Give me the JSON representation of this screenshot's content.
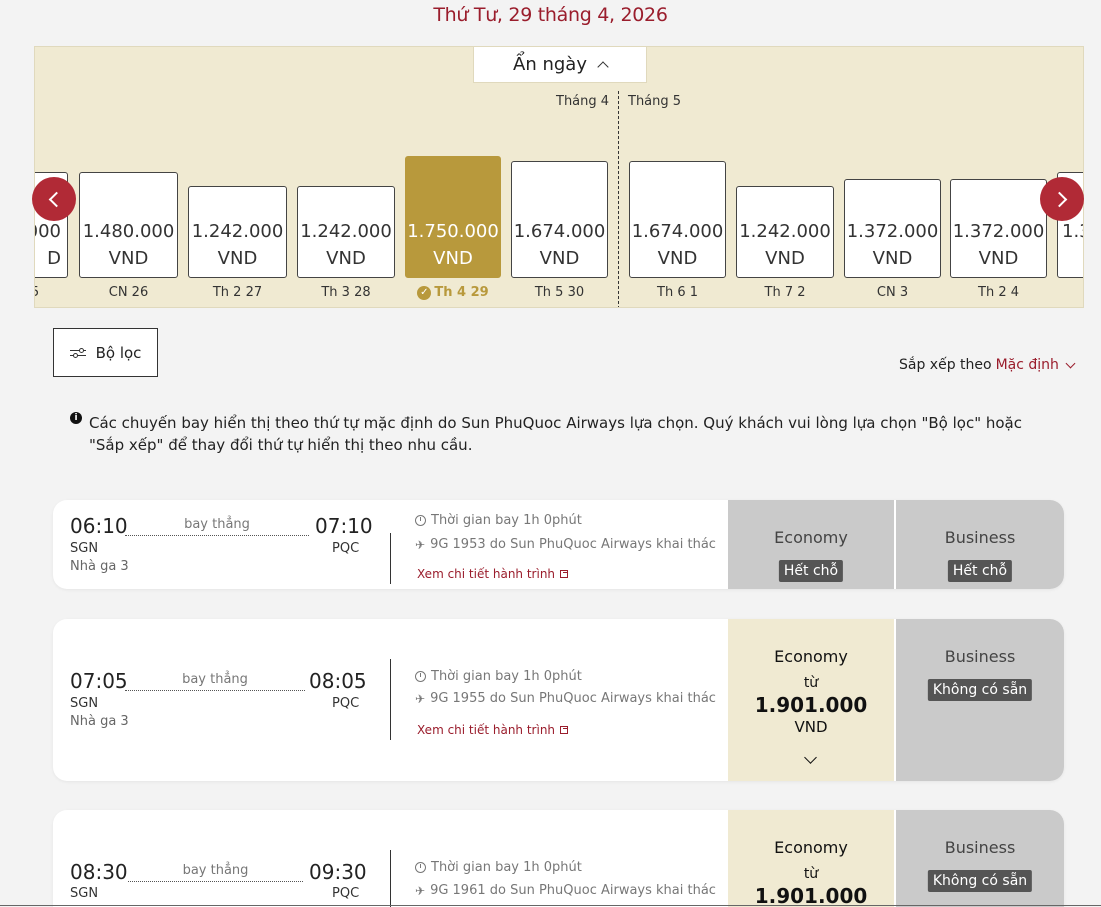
{
  "header": {
    "date_title": "Thứ Tư, 29 tháng 4, 2026"
  },
  "calendar": {
    "hide_label": "Ẩn ngày",
    "months": [
      "Tháng 4",
      "Tháng 5"
    ],
    "days": [
      {
        "price": "1.480.000",
        "cur": "VND",
        "label": "CN 26"
      },
      {
        "price": "1.242.000",
        "cur": "VND",
        "label": "Th 2 27"
      },
      {
        "price": "1.242.000",
        "cur": "VND",
        "label": "Th 3 28"
      },
      {
        "price": "1.750.000",
        "cur": "VND",
        "label": "Th 4 29"
      },
      {
        "price": "1.674.000",
        "cur": "VND",
        "label": "Th 5 30"
      },
      {
        "price": "1.674.000",
        "cur": "VND",
        "label": "Th 6 1"
      },
      {
        "price": "1.242.000",
        "cur": "VND",
        "label": "Th 7 2"
      },
      {
        "price": "1.372.000",
        "cur": "VND",
        "label": "CN 3"
      },
      {
        "price": "1.372.000",
        "cur": "VND",
        "label": "Th 2 4"
      }
    ],
    "partial_left": {
      "price": "000",
      "cur": "D",
      "label": "5"
    },
    "partial_right": {
      "price": "1.3"
    }
  },
  "toolbar": {
    "filter_label": "Bộ lọc",
    "sort_prefix": "Sắp xếp theo",
    "sort_value": "Mặc định"
  },
  "notice": "Các chuyến bay hiển thị theo thứ tự mặc định do Sun PhuQuoc Airways lựa chọn. Quý khách vui lòng lựa chọn \"Bộ lọc\" hoặc \"Sắp xếp\" để thay đổi thứ tự hiển thị theo nhu cầu.",
  "flights": [
    {
      "dep_time": "06:10",
      "arr_time": "07:10",
      "dep": "SGN",
      "arr": "PQC",
      "terminal": "Nhà ga 3",
      "route": "bay thẳng",
      "duration": "Thời gian bay  1h 0phút",
      "flight_info": "9G 1953 do Sun PhuQuoc Airways khai thác",
      "detail_link": "Xem chi tiết hành trình",
      "economy": {
        "name": "Economy",
        "status": "Hết chỗ"
      },
      "business": {
        "name": "Business",
        "status": "Hết chỗ"
      }
    },
    {
      "dep_time": "07:05",
      "arr_time": "08:05",
      "dep": "SGN",
      "arr": "PQC",
      "terminal": "Nhà ga 3",
      "route": "bay thẳng",
      "duration": "Thời gian bay  1h 0phút",
      "flight_info": "9G 1955 do Sun PhuQuoc Airways khai thác",
      "detail_link": "Xem chi tiết hành trình",
      "economy": {
        "name": "Economy",
        "from": "từ",
        "price": "1.901.000",
        "cur": "VND"
      },
      "business": {
        "name": "Business",
        "status": "Không có sẵn"
      }
    },
    {
      "dep_time": "08:30",
      "arr_time": "09:30",
      "dep": "SGN",
      "arr": "PQC",
      "route": "bay thẳng",
      "duration": "Thời gian bay  1h 0phút",
      "flight_info": "9G 1961 do Sun PhuQuoc Airways khai thác",
      "economy": {
        "name": "Economy",
        "from": "từ",
        "price": "1.901.000"
      },
      "business": {
        "name": "Business",
        "status": "Không có sẵn"
      }
    }
  ],
  "colors": {
    "accent": "#9a1d2c",
    "gold": "#b8993c",
    "cream": "#f0ead2",
    "gray_fare": "#cacaca"
  }
}
